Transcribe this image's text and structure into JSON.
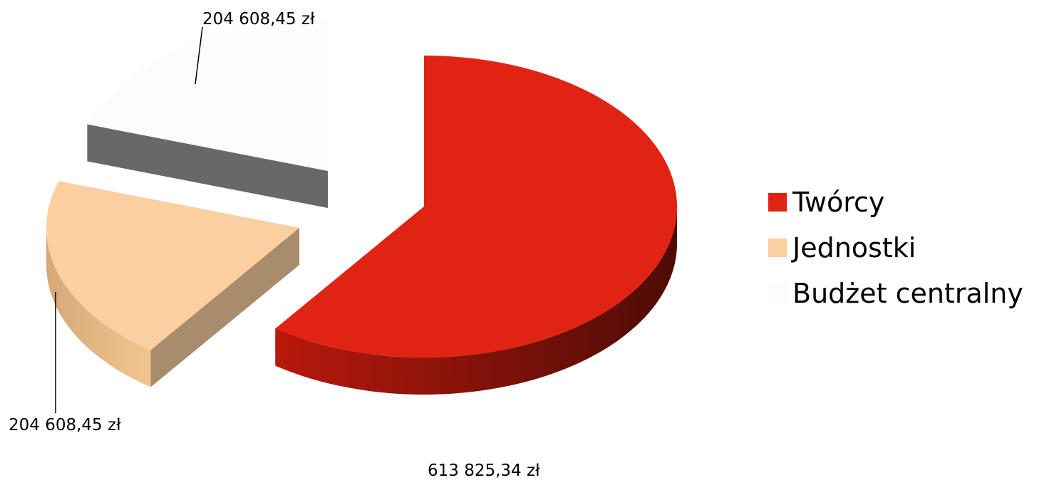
{
  "chart_data": {
    "type": "pie",
    "title": "",
    "slices": [
      {
        "name": "Twórcy",
        "value": 613825.34,
        "label": "613 825,34 zł",
        "color": "#e02312"
      },
      {
        "name": "Jednostki",
        "value": 204608.45,
        "label": "204 608,45 zł",
        "color": "#fbcf9f"
      },
      {
        "name": "Budżet centralny",
        "value": 204608.45,
        "label": "204 608,45 zł",
        "color": "#fcfcfc"
      }
    ],
    "legend": {
      "position": "right",
      "items": [
        "Twórcy",
        "Jednostki",
        "Budżet centralny"
      ]
    },
    "style": "3d-exploded"
  }
}
